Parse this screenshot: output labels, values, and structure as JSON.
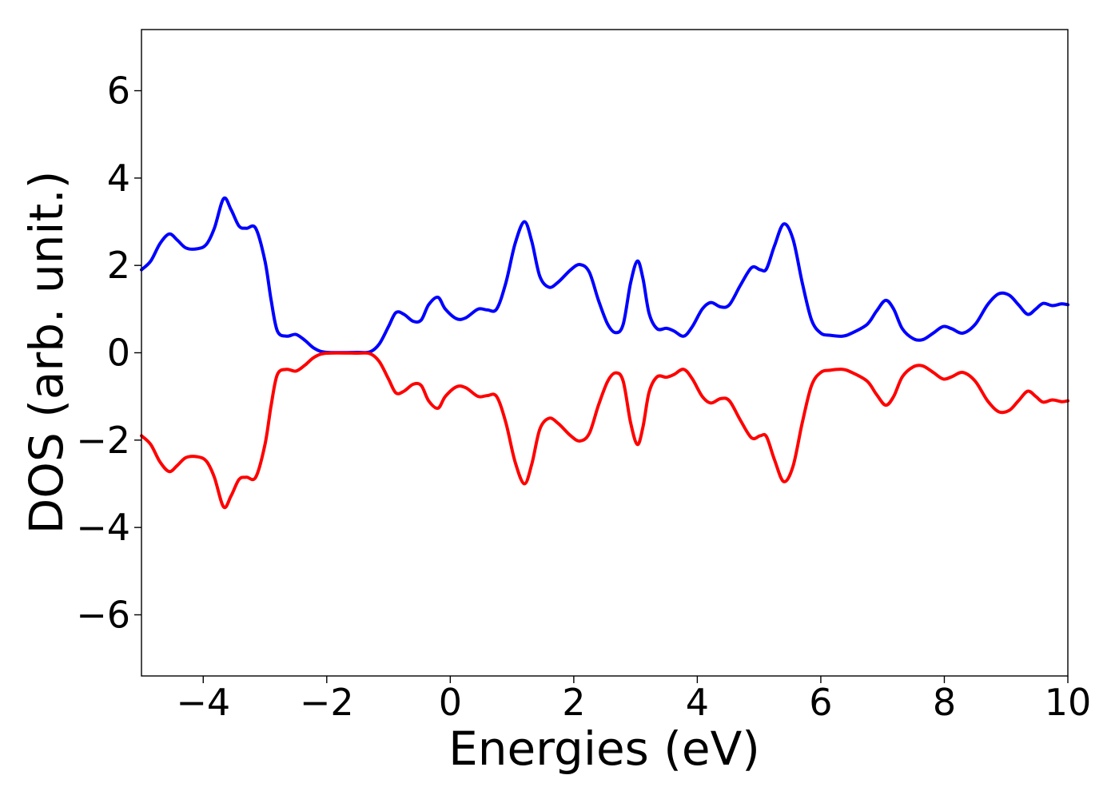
{
  "chart_data": {
    "type": "line",
    "title": "",
    "xlabel": "Energies (eV)",
    "ylabel": "DOS (arb. unit.)",
    "xlim": [
      -5,
      10
    ],
    "ylim": [
      -7.4,
      7.4
    ],
    "x_ticks": [
      -4,
      -2,
      0,
      2,
      4,
      6,
      8,
      10
    ],
    "x_tick_labels": [
      "−4",
      "−2",
      "0",
      "2",
      "4",
      "6",
      "8",
      "10"
    ],
    "y_ticks": [
      -6,
      -4,
      -2,
      0,
      2,
      4,
      6
    ],
    "y_tick_labels": [
      "−6",
      "−4",
      "−2",
      "0",
      "2",
      "4",
      "6"
    ],
    "grid": false,
    "legend": "none",
    "series": [
      {
        "color": "#0000ff",
        "points": [
          [
            -5.0,
            1.9
          ],
          [
            -4.85,
            2.1
          ],
          [
            -4.7,
            2.5
          ],
          [
            -4.55,
            2.72
          ],
          [
            -4.42,
            2.58
          ],
          [
            -4.28,
            2.4
          ],
          [
            -4.1,
            2.38
          ],
          [
            -3.95,
            2.48
          ],
          [
            -3.82,
            2.85
          ],
          [
            -3.67,
            3.53
          ],
          [
            -3.55,
            3.28
          ],
          [
            -3.42,
            2.9
          ],
          [
            -3.3,
            2.85
          ],
          [
            -3.15,
            2.85
          ],
          [
            -3.0,
            2.1
          ],
          [
            -2.9,
            1.2
          ],
          [
            -2.8,
            0.5
          ],
          [
            -2.65,
            0.38
          ],
          [
            -2.5,
            0.42
          ],
          [
            -2.35,
            0.28
          ],
          [
            -2.2,
            0.1
          ],
          [
            -2.0,
            0.01
          ],
          [
            -1.5,
            0.01
          ],
          [
            -1.3,
            0.02
          ],
          [
            -1.15,
            0.2
          ],
          [
            -1.0,
            0.6
          ],
          [
            -0.88,
            0.92
          ],
          [
            -0.75,
            0.88
          ],
          [
            -0.6,
            0.72
          ],
          [
            -0.47,
            0.75
          ],
          [
            -0.35,
            1.1
          ],
          [
            -0.2,
            1.27
          ],
          [
            -0.08,
            1.0
          ],
          [
            0.1,
            0.78
          ],
          [
            0.25,
            0.8
          ],
          [
            0.45,
            1.0
          ],
          [
            0.6,
            0.98
          ],
          [
            0.75,
            1.0
          ],
          [
            0.9,
            1.6
          ],
          [
            1.05,
            2.5
          ],
          [
            1.2,
            3.0
          ],
          [
            1.32,
            2.55
          ],
          [
            1.45,
            1.75
          ],
          [
            1.6,
            1.5
          ],
          [
            1.75,
            1.62
          ],
          [
            1.95,
            1.9
          ],
          [
            2.1,
            2.02
          ],
          [
            2.25,
            1.85
          ],
          [
            2.4,
            1.2
          ],
          [
            2.55,
            0.65
          ],
          [
            2.68,
            0.46
          ],
          [
            2.8,
            0.65
          ],
          [
            2.92,
            1.6
          ],
          [
            3.03,
            2.1
          ],
          [
            3.12,
            1.7
          ],
          [
            3.22,
            0.9
          ],
          [
            3.35,
            0.55
          ],
          [
            3.5,
            0.56
          ],
          [
            3.62,
            0.5
          ],
          [
            3.78,
            0.38
          ],
          [
            3.92,
            0.6
          ],
          [
            4.08,
            1.0
          ],
          [
            4.22,
            1.15
          ],
          [
            4.38,
            1.05
          ],
          [
            4.52,
            1.1
          ],
          [
            4.7,
            1.55
          ],
          [
            4.88,
            1.95
          ],
          [
            5.02,
            1.9
          ],
          [
            5.12,
            1.92
          ],
          [
            5.25,
            2.45
          ],
          [
            5.4,
            2.95
          ],
          [
            5.55,
            2.6
          ],
          [
            5.7,
            1.6
          ],
          [
            5.85,
            0.75
          ],
          [
            6.0,
            0.45
          ],
          [
            6.15,
            0.4
          ],
          [
            6.35,
            0.38
          ],
          [
            6.5,
            0.45
          ],
          [
            6.75,
            0.65
          ],
          [
            6.9,
            0.95
          ],
          [
            7.05,
            1.2
          ],
          [
            7.18,
            1.0
          ],
          [
            7.32,
            0.55
          ],
          [
            7.5,
            0.32
          ],
          [
            7.65,
            0.3
          ],
          [
            7.82,
            0.45
          ],
          [
            7.98,
            0.6
          ],
          [
            8.12,
            0.55
          ],
          [
            8.3,
            0.45
          ],
          [
            8.5,
            0.65
          ],
          [
            8.7,
            1.1
          ],
          [
            8.88,
            1.35
          ],
          [
            9.05,
            1.32
          ],
          [
            9.2,
            1.1
          ],
          [
            9.35,
            0.88
          ],
          [
            9.48,
            1.0
          ],
          [
            9.6,
            1.13
          ],
          [
            9.75,
            1.08
          ],
          [
            9.9,
            1.12
          ],
          [
            10.0,
            1.1
          ]
        ]
      },
      {
        "color": "#ff0000",
        "points": [
          [
            -5.0,
            -1.9
          ],
          [
            -4.85,
            -2.1
          ],
          [
            -4.7,
            -2.5
          ],
          [
            -4.55,
            -2.72
          ],
          [
            -4.42,
            -2.58
          ],
          [
            -4.28,
            -2.4
          ],
          [
            -4.1,
            -2.38
          ],
          [
            -3.95,
            -2.48
          ],
          [
            -3.82,
            -2.85
          ],
          [
            -3.67,
            -3.53
          ],
          [
            -3.55,
            -3.28
          ],
          [
            -3.42,
            -2.9
          ],
          [
            -3.3,
            -2.85
          ],
          [
            -3.15,
            -2.85
          ],
          [
            -3.0,
            -2.1
          ],
          [
            -2.9,
            -1.2
          ],
          [
            -2.8,
            -0.5
          ],
          [
            -2.65,
            -0.38
          ],
          [
            -2.5,
            -0.42
          ],
          [
            -2.35,
            -0.28
          ],
          [
            -2.2,
            -0.1
          ],
          [
            -2.0,
            -0.01
          ],
          [
            -1.5,
            -0.01
          ],
          [
            -1.3,
            -0.02
          ],
          [
            -1.15,
            -0.2
          ],
          [
            -1.0,
            -0.6
          ],
          [
            -0.88,
            -0.92
          ],
          [
            -0.75,
            -0.88
          ],
          [
            -0.6,
            -0.72
          ],
          [
            -0.47,
            -0.75
          ],
          [
            -0.35,
            -1.1
          ],
          [
            -0.2,
            -1.27
          ],
          [
            -0.08,
            -1.0
          ],
          [
            0.1,
            -0.78
          ],
          [
            0.25,
            -0.8
          ],
          [
            0.45,
            -1.0
          ],
          [
            0.6,
            -0.98
          ],
          [
            0.75,
            -1.0
          ],
          [
            0.9,
            -1.6
          ],
          [
            1.05,
            -2.5
          ],
          [
            1.2,
            -3.0
          ],
          [
            1.32,
            -2.55
          ],
          [
            1.45,
            -1.75
          ],
          [
            1.6,
            -1.5
          ],
          [
            1.75,
            -1.62
          ],
          [
            1.95,
            -1.9
          ],
          [
            2.1,
            -2.02
          ],
          [
            2.25,
            -1.85
          ],
          [
            2.4,
            -1.2
          ],
          [
            2.55,
            -0.65
          ],
          [
            2.68,
            -0.46
          ],
          [
            2.8,
            -0.65
          ],
          [
            2.92,
            -1.6
          ],
          [
            3.03,
            -2.1
          ],
          [
            3.12,
            -1.7
          ],
          [
            3.22,
            -0.9
          ],
          [
            3.35,
            -0.55
          ],
          [
            3.5,
            -0.56
          ],
          [
            3.62,
            -0.5
          ],
          [
            3.78,
            -0.38
          ],
          [
            3.92,
            -0.6
          ],
          [
            4.08,
            -1.0
          ],
          [
            4.22,
            -1.15
          ],
          [
            4.38,
            -1.05
          ],
          [
            4.52,
            -1.1
          ],
          [
            4.7,
            -1.55
          ],
          [
            4.88,
            -1.95
          ],
          [
            5.02,
            -1.9
          ],
          [
            5.12,
            -1.92
          ],
          [
            5.25,
            -2.45
          ],
          [
            5.4,
            -2.95
          ],
          [
            5.55,
            -2.6
          ],
          [
            5.7,
            -1.6
          ],
          [
            5.85,
            -0.75
          ],
          [
            6.0,
            -0.45
          ],
          [
            6.15,
            -0.4
          ],
          [
            6.35,
            -0.38
          ],
          [
            6.5,
            -0.45
          ],
          [
            6.75,
            -0.65
          ],
          [
            6.9,
            -0.95
          ],
          [
            7.05,
            -1.2
          ],
          [
            7.18,
            -1.0
          ],
          [
            7.32,
            -0.55
          ],
          [
            7.5,
            -0.32
          ],
          [
            7.65,
            -0.3
          ],
          [
            7.82,
            -0.45
          ],
          [
            7.98,
            -0.6
          ],
          [
            8.12,
            -0.55
          ],
          [
            8.3,
            -0.45
          ],
          [
            8.5,
            -0.65
          ],
          [
            8.7,
            -1.1
          ],
          [
            8.88,
            -1.35
          ],
          [
            9.05,
            -1.32
          ],
          [
            9.2,
            -1.1
          ],
          [
            9.35,
            -0.88
          ],
          [
            9.48,
            -1.0
          ],
          [
            9.6,
            -1.13
          ],
          [
            9.75,
            -1.08
          ],
          [
            9.9,
            -1.12
          ],
          [
            10.0,
            -1.1
          ]
        ]
      }
    ]
  }
}
